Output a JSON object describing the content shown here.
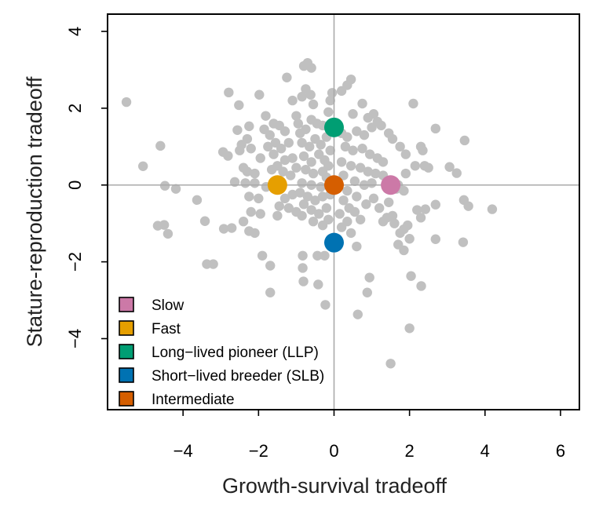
{
  "chart_data": {
    "type": "scatter",
    "title": "",
    "xlabel": "Growth-survival tradeoff",
    "ylabel": "Stature-reproduction tradeoff",
    "xlim": [
      -6.0,
      6.5
    ],
    "ylim": [
      -5.85,
      4.45
    ],
    "xticks": [
      -4,
      -2,
      0,
      2,
      4,
      6
    ],
    "yticks": [
      -4,
      -2,
      0,
      2,
      4
    ],
    "xtick_labels": [
      "−4",
      "−2",
      "0",
      "2",
      "4",
      "6"
    ],
    "ytick_labels": [
      "−4",
      "−2",
      "0",
      "2",
      "4"
    ],
    "reference_lines": {
      "x": 0,
      "y": 0
    },
    "grid": false,
    "legend_position": "bottom-left",
    "species_color": "#c0c0c0",
    "species_points": [
      [
        -5.5,
        2.16
      ],
      [
        -5.06,
        0.49
      ],
      [
        -4.6,
        1.02
      ],
      [
        -4.48,
        -0.02
      ],
      [
        -4.19,
        -0.1
      ],
      [
        -4.67,
        -1.06
      ],
      [
        -4.5,
        -1.04
      ],
      [
        -4.4,
        -1.27
      ],
      [
        -3.63,
        -0.39
      ],
      [
        -3.42,
        -0.94
      ],
      [
        -3.37,
        -2.06
      ],
      [
        -3.2,
        -2.06
      ],
      [
        -2.79,
        2.41
      ],
      [
        -2.94,
        0.86
      ],
      [
        -2.81,
        0.76
      ],
      [
        -2.63,
        0.08
      ],
      [
        -2.92,
        -1.14
      ],
      [
        -2.71,
        -1.12
      ],
      [
        -2.52,
        2.08
      ],
      [
        -1.98,
        2.35
      ],
      [
        -1.81,
        1.8
      ],
      [
        -2.56,
        1.43
      ],
      [
        -2.25,
        1.53
      ],
      [
        -2.3,
        1.2
      ],
      [
        -2.45,
        1.05
      ],
      [
        -2.5,
        0.9
      ],
      [
        -2.2,
        0.95
      ],
      [
        -1.95,
        0.7
      ],
      [
        -2.4,
        0.45
      ],
      [
        -2.3,
        0.35
      ],
      [
        -2.1,
        0.3
      ],
      [
        -2.35,
        0.05
      ],
      [
        -2.1,
        0.05
      ],
      [
        -1.8,
        -0.05
      ],
      [
        -2.25,
        -0.3
      ],
      [
        -2.0,
        -0.35
      ],
      [
        -2.2,
        -0.7
      ],
      [
        -1.95,
        -0.75
      ],
      [
        -2.4,
        -0.95
      ],
      [
        -2.1,
        -1.25
      ],
      [
        -2.25,
        -1.2
      ],
      [
        -1.69,
        -2.8
      ],
      [
        -1.69,
        -2.1
      ],
      [
        -1.9,
        -1.84
      ],
      [
        -1.85,
        1.45
      ],
      [
        -1.7,
        1.3
      ],
      [
        -1.6,
        1.6
      ],
      [
        -1.45,
        1.55
      ],
      [
        -1.3,
        1.4
      ],
      [
        -1.55,
        1.1
      ],
      [
        -1.75,
        1.0
      ],
      [
        -1.4,
        0.95
      ],
      [
        -1.2,
        1.1
      ],
      [
        -1.6,
        0.8
      ],
      [
        -1.3,
        0.65
      ],
      [
        -1.1,
        0.7
      ],
      [
        -1.5,
        0.5
      ],
      [
        -1.65,
        0.4
      ],
      [
        -1.35,
        0.35
      ],
      [
        -1.15,
        0.25
      ],
      [
        -1.0,
        0.45
      ],
      [
        -1.3,
        -0.35
      ],
      [
        -1.1,
        -0.25
      ],
      [
        -0.9,
        -0.2
      ],
      [
        -1.45,
        -0.55
      ],
      [
        -1.5,
        -0.8
      ],
      [
        -1.2,
        -0.6
      ],
      [
        -1.0,
        -0.7
      ],
      [
        -1.25,
        2.8
      ],
      [
        -1.1,
        2.2
      ],
      [
        -1.0,
        1.8
      ],
      [
        -0.95,
        1.6
      ],
      [
        -0.85,
        2.3
      ],
      [
        -0.8,
        3.1
      ],
      [
        -0.7,
        3.18
      ],
      [
        -0.6,
        3.05
      ],
      [
        -0.75,
        2.5
      ],
      [
        -0.62,
        2.35
      ],
      [
        -0.55,
        2.1
      ],
      [
        -0.9,
        1.35
      ],
      [
        -0.75,
        1.45
      ],
      [
        -0.6,
        1.7
      ],
      [
        -0.45,
        1.6
      ],
      [
        -0.3,
        1.55
      ],
      [
        -0.15,
        1.9
      ],
      [
        -0.1,
        2.2
      ],
      [
        -0.05,
        2.4
      ],
      [
        -0.85,
        1.1
      ],
      [
        -0.65,
        1.0
      ],
      [
        -0.5,
        1.2
      ],
      [
        -0.35,
        1.05
      ],
      [
        -0.2,
        1.25
      ],
      [
        -0.8,
        0.75
      ],
      [
        -0.6,
        0.6
      ],
      [
        -0.4,
        0.8
      ],
      [
        -0.25,
        0.65
      ],
      [
        -0.1,
        0.9
      ],
      [
        -0.75,
        0.4
      ],
      [
        -0.55,
        0.3
      ],
      [
        -0.3,
        0.35
      ],
      [
        -0.15,
        0.5
      ],
      [
        -0.85,
        0.05
      ],
      [
        -0.6,
        0.0
      ],
      [
        -0.35,
        -0.05
      ],
      [
        -0.2,
        0.2
      ],
      [
        -0.7,
        -0.3
      ],
      [
        -0.5,
        -0.4
      ],
      [
        -0.3,
        -0.3
      ],
      [
        -0.1,
        -0.25
      ],
      [
        -0.8,
        -0.5
      ],
      [
        -0.6,
        -0.65
      ],
      [
        -0.4,
        -0.75
      ],
      [
        -0.2,
        -0.6
      ],
      [
        -0.85,
        -0.8
      ],
      [
        -0.55,
        -0.95
      ],
      [
        -0.3,
        -1.05
      ],
      [
        -0.15,
        -0.9
      ],
      [
        -0.83,
        -1.84
      ],
      [
        -0.83,
        -2.16
      ],
      [
        -0.81,
        -2.51
      ],
      [
        -0.42,
        -2.59
      ],
      [
        -0.44,
        -1.84
      ],
      [
        -0.25,
        -1.84
      ],
      [
        -0.23,
        -3.12
      ],
      [
        0.1,
        -1.5
      ],
      [
        0.2,
        -1.1
      ],
      [
        0.35,
        -0.95
      ],
      [
        0.15,
        -0.75
      ],
      [
        0.4,
        -0.6
      ],
      [
        0.25,
        -0.4
      ],
      [
        0.55,
        -0.7
      ],
      [
        0.7,
        -0.9
      ],
      [
        0.45,
        -1.25
      ],
      [
        0.6,
        -1.6
      ],
      [
        0.94,
        -2.41
      ],
      [
        0.88,
        -2.8
      ],
      [
        0.63,
        -3.37
      ],
      [
        2.0,
        -3.73
      ],
      [
        1.5,
        -4.65
      ],
      [
        2.04,
        -2.37
      ],
      [
        2.31,
        -2.63
      ],
      [
        0.2,
        2.45
      ],
      [
        0.35,
        2.6
      ],
      [
        0.45,
        2.75
      ],
      [
        0.75,
        2.12
      ],
      [
        0.5,
        1.85
      ],
      [
        2.1,
        2.12
      ],
      [
        2.69,
        1.47
      ],
      [
        3.46,
        1.16
      ],
      [
        3.06,
        0.47
      ],
      [
        3.25,
        0.31
      ],
      [
        4.19,
        -0.63
      ],
      [
        3.44,
        -0.39
      ],
      [
        3.56,
        -0.55
      ],
      [
        2.69,
        -0.51
      ],
      [
        2.42,
        -0.63
      ],
      [
        3.42,
        -1.49
      ],
      [
        2.69,
        -1.41
      ],
      [
        2.2,
        -0.65
      ],
      [
        2.3,
        -0.85
      ],
      [
        2.0,
        -1.4
      ],
      [
        1.3,
        -0.95
      ],
      [
        1.4,
        -0.85
      ],
      [
        1.9,
        0.3
      ],
      [
        2.15,
        0.5
      ],
      [
        2.4,
        0.5
      ],
      [
        2.5,
        0.45
      ],
      [
        2.3,
        1.0
      ],
      [
        2.35,
        0.9
      ],
      [
        1.75,
        1.0
      ],
      [
        1.9,
        0.8
      ],
      [
        1.55,
        1.2
      ],
      [
        1.45,
        1.35
      ],
      [
        0.2,
        1.35
      ],
      [
        0.35,
        1.25
      ],
      [
        0.6,
        1.4
      ],
      [
        0.8,
        1.3
      ],
      [
        1.0,
        1.5
      ],
      [
        1.15,
        1.65
      ],
      [
        1.25,
        1.55
      ],
      [
        1.05,
        1.85
      ],
      [
        0.9,
        1.75
      ],
      [
        0.3,
        1.0
      ],
      [
        0.5,
        0.9
      ],
      [
        0.75,
        0.95
      ],
      [
        0.95,
        0.8
      ],
      [
        1.15,
        0.7
      ],
      [
        1.3,
        0.6
      ],
      [
        0.2,
        0.6
      ],
      [
        0.45,
        0.5
      ],
      [
        0.7,
        0.45
      ],
      [
        0.9,
        0.35
      ],
      [
        1.1,
        0.3
      ],
      [
        1.3,
        0.25
      ],
      [
        0.25,
        0.25
      ],
      [
        0.55,
        0.1
      ],
      [
        0.8,
        0.0
      ],
      [
        1.0,
        0.05
      ],
      [
        1.7,
        0.0
      ],
      [
        1.85,
        -0.15
      ],
      [
        1.65,
        -0.1
      ],
      [
        0.35,
        -0.15
      ],
      [
        0.6,
        -0.3
      ],
      [
        0.85,
        -0.5
      ],
      [
        1.05,
        -0.35
      ],
      [
        1.2,
        -0.6
      ],
      [
        1.6,
        -1.0
      ],
      [
        1.75,
        -1.25
      ],
      [
        1.85,
        -1.15
      ],
      [
        1.7,
        -1.55
      ],
      [
        1.85,
        -1.7
      ],
      [
        1.95,
        -1.05
      ],
      [
        1.55,
        -0.8
      ],
      [
        1.45,
        -0.45
      ]
    ],
    "series": [
      {
        "name": "Slow",
        "color": "#CC79A7",
        "x": 1.5,
        "y": 0
      },
      {
        "name": "Fast",
        "color": "#E69F00",
        "x": -1.5,
        "y": 0
      },
      {
        "name": "Long−lived pioneer (LLP)",
        "color": "#009E73",
        "x": 0,
        "y": 1.5
      },
      {
        "name": "Short−lived breeder (SLB)",
        "color": "#0072B2",
        "x": 0,
        "y": -1.5
      },
      {
        "name": "Intermediate",
        "color": "#D55E00",
        "x": 0,
        "y": 0
      }
    ]
  }
}
